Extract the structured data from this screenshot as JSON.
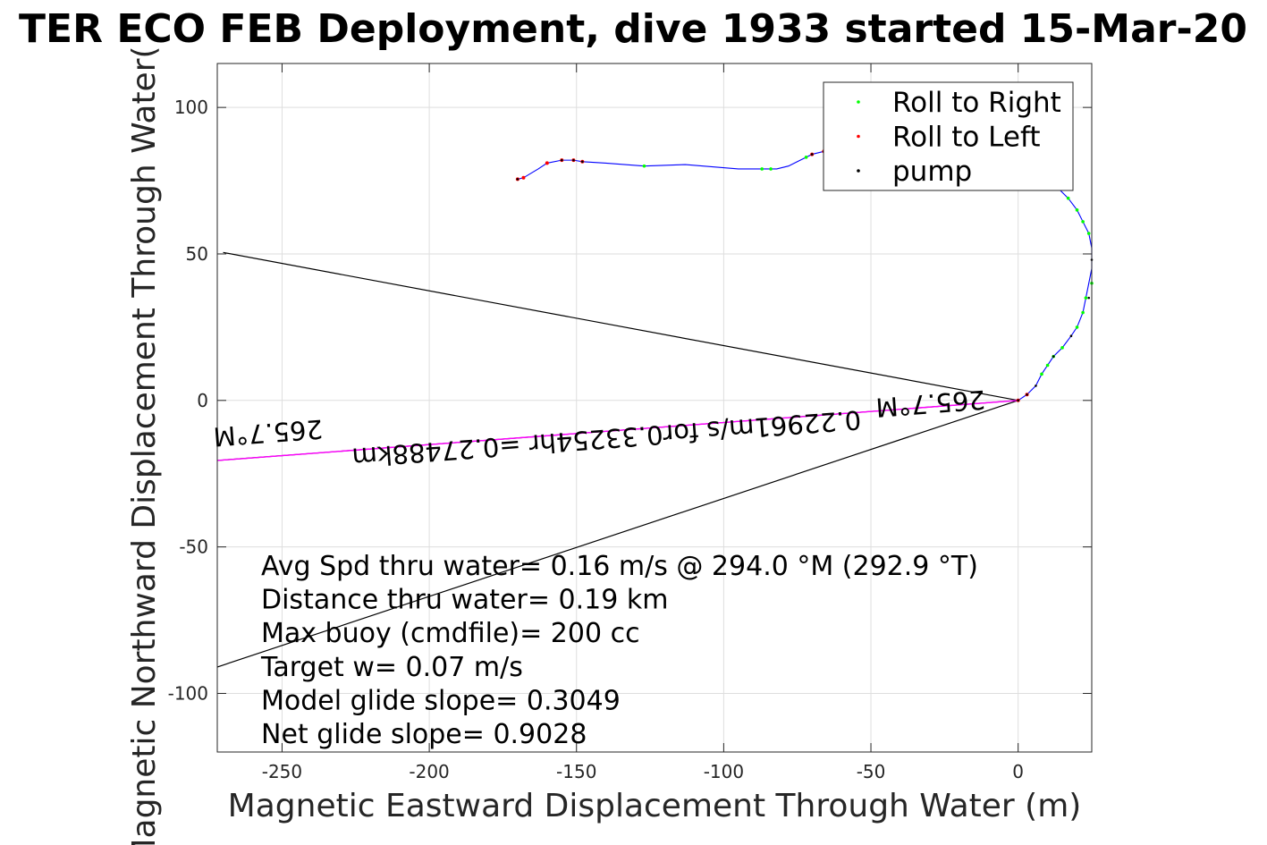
{
  "chart_data": {
    "type": "line",
    "title": "TER ECO FEB Deployment, dive 1933 started 15-Mar-20",
    "xlabel": "Magnetic Eastward Displacement Through Water (m)",
    "ylabel": "Magnetic Northward Displacement Through Water(",
    "xlim": [
      -272,
      25
    ],
    "ylim": [
      -120,
      115
    ],
    "xticks": [
      -250,
      -200,
      -150,
      -100,
      -50,
      0
    ],
    "yticks": [
      -100,
      -50,
      0,
      50,
      100
    ],
    "xtick_labels": [
      "-250",
      "-200",
      "-150",
      "-100",
      "-50",
      "0"
    ],
    "ytick_labels": [
      "-100",
      "-50",
      "0",
      "50",
      "100"
    ],
    "grid": true,
    "legend_position": "top-right",
    "legend": [
      {
        "label": "Roll to Right",
        "color": "#00ff00"
      },
      {
        "label": "Roll to Left",
        "color": "#ff0000"
      },
      {
        "label": "pump",
        "color": "#000000"
      }
    ],
    "track": {
      "name": "track",
      "color": "#0000ff",
      "x": [
        0,
        3,
        6,
        8,
        10,
        12,
        15,
        18,
        20,
        22,
        23,
        24,
        25,
        25,
        25,
        24,
        22,
        20,
        17,
        14,
        12,
        9,
        5,
        0,
        -5,
        -10,
        -20,
        -30,
        -40,
        -50,
        -60,
        -66,
        -70,
        -72,
        -78,
        -82,
        -84,
        -87,
        -95,
        -113,
        -127,
        -140,
        -148,
        -151,
        -155,
        -160,
        -163,
        -168,
        -170
      ],
      "y": [
        0,
        2,
        5,
        9,
        12,
        15,
        18,
        22,
        25,
        30,
        35,
        40,
        45,
        48,
        52,
        57,
        61,
        65,
        69,
        72,
        75,
        80,
        85,
        86,
        86,
        85,
        86,
        86,
        86,
        86,
        85,
        85,
        84,
        83,
        80,
        79,
        79,
        79,
        79,
        80.5,
        80,
        81,
        81.5,
        82,
        82,
        81,
        79,
        76,
        75.5
      ]
    },
    "roll_right": {
      "color": "#00ff00",
      "x": [
        8,
        10,
        12,
        15,
        20,
        22,
        23,
        25,
        24,
        22,
        20,
        17,
        -72,
        -84,
        -87,
        -127
      ],
      "y": [
        9,
        12,
        15,
        18,
        25,
        30,
        35,
        40,
        57,
        61,
        65,
        69,
        83,
        79,
        79,
        80
      ]
    },
    "roll_left": {
      "color": "#ff0000",
      "x": [
        0,
        3,
        -66,
        -70,
        -148,
        -151,
        -155,
        -160,
        -168,
        -170
      ],
      "y": [
        0,
        2,
        85,
        84,
        81.5,
        82,
        82,
        81,
        76,
        75.5
      ]
    },
    "pump": {
      "color": "#000000",
      "x": [
        0,
        3,
        6,
        12,
        18,
        24,
        25,
        -66,
        -70,
        -148,
        -151,
        -155,
        -170
      ],
      "y": [
        0,
        2,
        5,
        15,
        22,
        35,
        48,
        85,
        84,
        81.5,
        82,
        82,
        75.5
      ]
    },
    "current_line": {
      "color": "#ff00ff",
      "x": [
        0,
        -272
      ],
      "y": [
        0,
        -20.5
      ]
    },
    "wedge_lines": {
      "color": "#000000",
      "lines": [
        {
          "x": [
            0,
            -270
          ],
          "y": [
            0,
            50.5
          ]
        },
        {
          "x": [
            0,
            -275
          ],
          "y": [
            0,
            -92
          ]
        },
        {
          "x": [
            0,
            -272
          ],
          "y": [
            0,
            -20.5
          ]
        }
      ]
    },
    "flipped_labels": [
      {
        "text": "265.7°M",
        "at_x": -255,
        "at_y": -8
      },
      {
        "text": "265.7°M",
        "at_x": -30,
        "at_y": 2
      },
      {
        "text": "0.22961m/s for0.33254hr =0.27488km",
        "at_x": -140,
        "at_y": -10
      }
    ],
    "annotations": [
      "Avg Spd thru water=  0.16 m/s @ 294.0 °M (292.9 °T)",
      "Distance thru water=  0.19 km",
      "Max buoy (cmdfile)= 200 cc",
      "Target w= 0.07 m/s",
      "Model glide slope= 0.3049",
      "Net glide slope= 0.9028"
    ]
  }
}
